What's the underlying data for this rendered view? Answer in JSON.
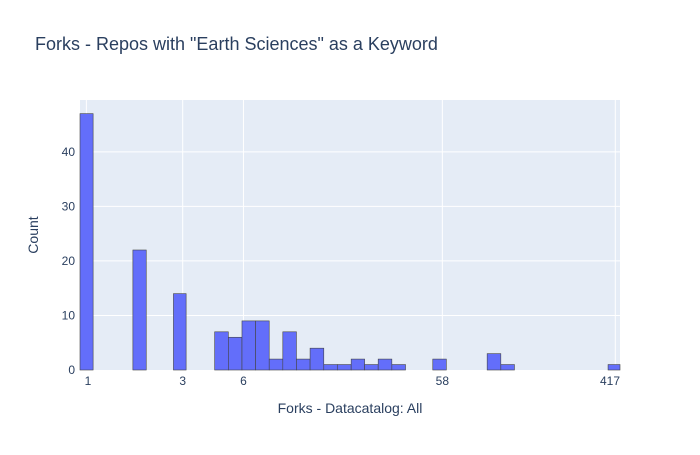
{
  "chart_data": {
    "type": "bar",
    "title": "Forks - Repos with \"Earth Sciences\" as a Keyword",
    "xlabel": "Forks - Datacatalog: All",
    "ylabel": "Count",
    "x_scale": "log",
    "xlim": [
      0.93,
      440
    ],
    "ylim": [
      0,
      49.5
    ],
    "x_ticks": [
      {
        "value": 1,
        "label": "1"
      },
      {
        "value": 3,
        "label": "3"
      },
      {
        "value": 6,
        "label": "6"
      },
      {
        "value": 58,
        "label": "58"
      },
      {
        "value": 417,
        "label": "417"
      }
    ],
    "y_ticks": [
      0,
      10,
      20,
      30,
      40
    ],
    "grid": true,
    "bar_color": "#636efa",
    "bars": [
      {
        "x0": 0.93,
        "x1": 1.08,
        "count": 47
      },
      {
        "x0": 1.7,
        "x1": 1.98,
        "count": 22
      },
      {
        "x0": 2.7,
        "x1": 3.12,
        "count": 14
      },
      {
        "x0": 4.32,
        "x1": 5.05,
        "count": 7
      },
      {
        "x0": 5.05,
        "x1": 5.9,
        "count": 6
      },
      {
        "x0": 5.9,
        "x1": 6.89,
        "count": 9
      },
      {
        "x0": 6.89,
        "x1": 8.05,
        "count": 9
      },
      {
        "x0": 8.05,
        "x1": 9.4,
        "count": 2
      },
      {
        "x0": 9.4,
        "x1": 10.98,
        "count": 7
      },
      {
        "x0": 10.98,
        "x1": 12.83,
        "count": 2
      },
      {
        "x0": 12.83,
        "x1": 15.0,
        "count": 4
      },
      {
        "x0": 15.0,
        "x1": 17.5,
        "count": 1
      },
      {
        "x0": 17.5,
        "x1": 20.5,
        "count": 1
      },
      {
        "x0": 20.5,
        "x1": 23.9,
        "count": 2
      },
      {
        "x0": 23.9,
        "x1": 27.9,
        "count": 1
      },
      {
        "x0": 27.9,
        "x1": 32.6,
        "count": 2
      },
      {
        "x0": 32.6,
        "x1": 38.1,
        "count": 1
      },
      {
        "x0": 52.0,
        "x1": 60.7,
        "count": 2
      },
      {
        "x0": 96.7,
        "x1": 113.0,
        "count": 3
      },
      {
        "x0": 113.0,
        "x1": 132.0,
        "count": 1
      },
      {
        "x0": 384.0,
        "x1": 440.0,
        "count": 1
      }
    ]
  }
}
